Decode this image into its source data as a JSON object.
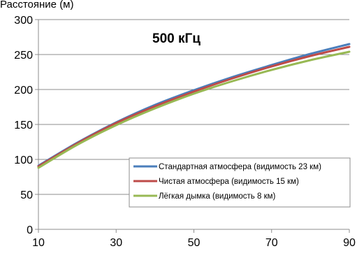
{
  "chart_data": {
    "type": "line",
    "title": "500 кГц",
    "ylabel": "Расстояние (м)",
    "xlabel": "",
    "xlim": [
      10,
      90
    ],
    "ylim": [
      0,
      300
    ],
    "x_ticks": [
      "10",
      "30",
      "50",
      "70",
      "90"
    ],
    "y_ticks": [
      "0",
      "50",
      "100",
      "150",
      "200",
      "250",
      "300"
    ],
    "grid": true,
    "legend_position": "lower-right",
    "x": [
      10,
      20,
      30,
      40,
      50,
      60,
      70,
      80,
      90
    ],
    "series": [
      {
        "name": "Стандартная атмосфера (видимость 23 км)",
        "color": "#4a7ebb",
        "values": [
          91,
          124,
          153,
          178,
          199,
          218,
          235,
          251,
          265
        ]
      },
      {
        "name": "Чистая атмосфера (видимость 15 км)",
        "color": "#be4b48",
        "values": [
          90,
          123,
          152,
          176,
          197,
          216,
          233,
          248,
          261
        ]
      },
      {
        "name": "Лёгкая дымка (видимость 8 км)",
        "color": "#98b954",
        "values": [
          88,
          121,
          149,
          173,
          194,
          212,
          228,
          242,
          254
        ]
      }
    ]
  }
}
